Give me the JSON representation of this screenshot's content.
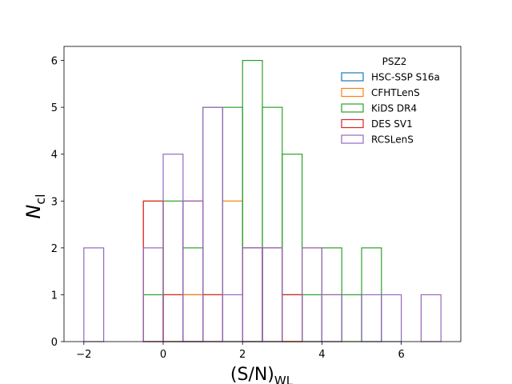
{
  "chart_data": {
    "type": "histogram",
    "xlabel_main": "(S/N)",
    "xlabel_sub": "WL",
    "ylabel_main": "N",
    "ylabel_sub": "cl",
    "xlim": [
      -2.5,
      7.5
    ],
    "ylim": [
      0,
      6.3
    ],
    "x_ticks": [
      -2,
      0,
      2,
      4,
      6
    ],
    "x_tick_labels": [
      "−2",
      "0",
      "2",
      "4",
      "6"
    ],
    "y_ticks": [
      0,
      1,
      2,
      3,
      4,
      5,
      6
    ],
    "y_tick_labels": [
      "0",
      "1",
      "2",
      "3",
      "4",
      "5",
      "6"
    ],
    "bin_edges": [
      -2.0,
      -1.5,
      -1.0,
      -0.5,
      0.0,
      0.5,
      1.0,
      1.5,
      2.0,
      2.5,
      3.0,
      3.5,
      4.0,
      4.5,
      5.0,
      5.5,
      6.0,
      6.5,
      7.0
    ],
    "legend_title": "PSZ2",
    "legend_position": "top-right",
    "series": [
      {
        "name": "HSC-SSP S16a",
        "color": "#1f77b4",
        "counts": [
          0,
          0,
          0,
          0,
          0,
          1,
          0,
          0,
          2,
          0,
          1,
          0,
          0,
          0,
          0,
          0,
          0,
          0
        ]
      },
      {
        "name": "CFHTLenS",
        "color": "#ff7f0e",
        "counts": [
          0,
          0,
          0,
          3,
          1,
          1,
          1,
          3,
          0,
          0,
          1,
          2,
          1,
          0,
          0,
          0,
          0,
          0
        ]
      },
      {
        "name": "KiDS DR4",
        "color": "#2ca02c",
        "counts": [
          0,
          0,
          0,
          1,
          3,
          2,
          5,
          5,
          6,
          5,
          4,
          1,
          2,
          1,
          2,
          0,
          0,
          0
        ]
      },
      {
        "name": "DES SV1",
        "color": "#d62728",
        "counts": [
          0,
          0,
          0,
          3,
          1,
          3,
          1,
          0,
          2,
          2,
          1,
          0,
          0,
          0,
          0,
          0,
          0,
          0
        ]
      },
      {
        "name": "RCSLenS",
        "color": "#9467bd",
        "counts": [
          2,
          0,
          0,
          2,
          4,
          3,
          5,
          1,
          2,
          2,
          0,
          2,
          1,
          0,
          1,
          1,
          0,
          1
        ]
      }
    ]
  }
}
